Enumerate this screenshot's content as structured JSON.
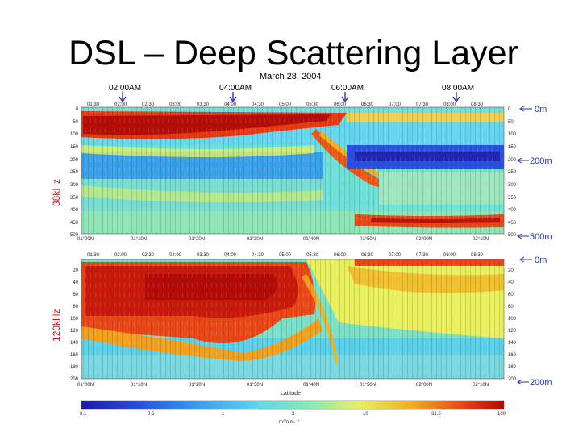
{
  "slide": {
    "title": "DSL – Deep Scattering Layer",
    "date": "March 28, 2004"
  },
  "markers": [
    "02:00AM",
    "04:00AM",
    "06:00AM",
    "08:00AM"
  ],
  "top_panel": {
    "label": "38kHz",
    "time_ticks": [
      "01:30",
      "02:00",
      "02:30",
      "03:00",
      "03:30",
      "04:00",
      "04:30",
      "05:00",
      "05:30",
      "06:00",
      "06:30",
      "07:00",
      "07:30",
      "08:00",
      "08:30"
    ],
    "depth_ticks": [
      "0",
      "50",
      "100",
      "150",
      "200",
      "250",
      "300",
      "350",
      "400",
      "450",
      "500"
    ],
    "lat_ticks": [
      "01°00N",
      "01°10N",
      "01°20N",
      "01°30N",
      "01°40N",
      "01°50N",
      "02°00N",
      "02°10N"
    ],
    "depth_callouts": [
      "0m",
      "200m",
      "500m"
    ]
  },
  "bottom_panel": {
    "label": "120kHz",
    "time_ticks": [
      "01:30",
      "02:00",
      "02:30",
      "03:00",
      "03:30",
      "04:00",
      "04:30",
      "05:00",
      "05:30",
      "06:00",
      "06:30",
      "07:00",
      "07:30",
      "08:00",
      "08:30"
    ],
    "depth_ticks": [
      "20",
      "40",
      "60",
      "80",
      "100",
      "120",
      "140",
      "160",
      "180",
      "200"
    ],
    "lat_ticks": [
      "01°00N",
      "01°10N",
      "01°20N",
      "01°30N",
      "01°40N",
      "01°50N",
      "02°00N",
      "02°10N"
    ],
    "depth_callouts": [
      "0m",
      "200m"
    ],
    "xlabel": "Latitude"
  },
  "colorbar": {
    "ticks": [
      "0.1",
      "0.5",
      "1",
      "3",
      "10",
      "31.5",
      "100"
    ],
    "label": "m²/n.m.⁻²",
    "colors": [
      "#1e1aa8",
      "#2a50e0",
      "#3aa0f0",
      "#5fd8e8",
      "#8fe8b0",
      "#e8f060",
      "#f0b020",
      "#e84818",
      "#b00808"
    ]
  }
}
